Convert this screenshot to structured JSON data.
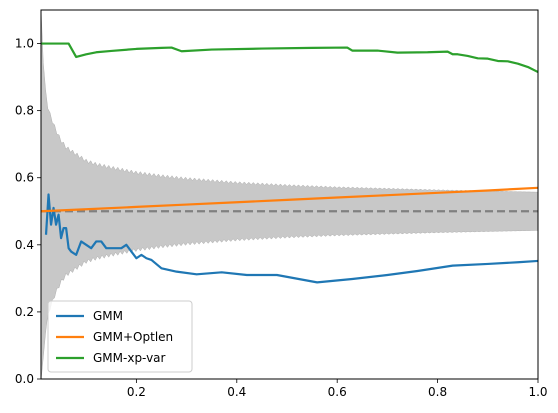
{
  "chart_data": {
    "type": "line",
    "xlim": [
      0.01,
      1.0
    ],
    "ylim": [
      0.0,
      1.1
    ],
    "x_ticks": [
      0.2,
      0.4,
      0.6,
      0.8,
      1.0
    ],
    "x_tick_labels": [
      "0.2",
      "0.4",
      "0.6",
      "0.8",
      "1.0"
    ],
    "y_ticks": [
      0.0,
      0.2,
      0.4,
      0.6,
      0.8,
      1.0
    ],
    "y_tick_labels": [
      "0.0",
      "0.2",
      "0.4",
      "0.6",
      "0.8",
      "1.0"
    ],
    "grid": false,
    "legend": {
      "placement": "lower-left",
      "entries": [
        "GMM",
        "GMM+Optlen",
        "GMM-xp-var"
      ]
    },
    "series": [
      {
        "name": "GMM",
        "color": "#1f77b4",
        "x": [
          0.02,
          0.025,
          0.03,
          0.035,
          0.04,
          0.045,
          0.05,
          0.055,
          0.06,
          0.065,
          0.07,
          0.08,
          0.09,
          0.1,
          0.11,
          0.12,
          0.13,
          0.14,
          0.15,
          0.16,
          0.17,
          0.18,
          0.19,
          0.2,
          0.21,
          0.22,
          0.23,
          0.25,
          0.28,
          0.32,
          0.37,
          0.42,
          0.48,
          0.56,
          0.63,
          0.7,
          0.76,
          0.83,
          0.9,
          0.96,
          1.0
        ],
        "values": [
          0.43,
          0.55,
          0.46,
          0.51,
          0.46,
          0.49,
          0.42,
          0.45,
          0.45,
          0.39,
          0.38,
          0.37,
          0.41,
          0.4,
          0.39,
          0.41,
          0.41,
          0.39,
          0.39,
          0.39,
          0.39,
          0.4,
          0.38,
          0.36,
          0.37,
          0.36,
          0.355,
          0.33,
          0.32,
          0.312,
          0.318,
          0.31,
          0.31,
          0.288,
          0.298,
          0.31,
          0.322,
          0.338,
          0.343,
          0.348,
          0.352
        ]
      },
      {
        "name": "GMM+Optlen",
        "color": "#ff7f0e",
        "x": [
          0.01,
          0.1,
          0.2,
          0.3,
          0.4,
          0.5,
          0.6,
          0.7,
          0.8,
          0.9,
          1.0
        ],
        "values": [
          0.5,
          0.506,
          0.513,
          0.52,
          0.527,
          0.534,
          0.541,
          0.548,
          0.555,
          0.562,
          0.57
        ]
      },
      {
        "name": "GMM-xp-var",
        "color": "#2ca02c",
        "x": [
          0.01,
          0.03,
          0.05,
          0.065,
          0.08,
          0.1,
          0.12,
          0.15,
          0.2,
          0.25,
          0.27,
          0.29,
          0.35,
          0.45,
          0.55,
          0.62,
          0.63,
          0.68,
          0.72,
          0.78,
          0.82,
          0.83,
          0.84,
          0.86,
          0.88,
          0.9,
          0.92,
          0.94,
          0.96,
          0.98,
          1.0
        ],
        "values": [
          1.0,
          1.0,
          1.0,
          1.0,
          0.96,
          0.968,
          0.974,
          0.978,
          0.984,
          0.987,
          0.988,
          0.977,
          0.982,
          0.985,
          0.987,
          0.988,
          0.979,
          0.979,
          0.973,
          0.974,
          0.976,
          0.968,
          0.968,
          0.963,
          0.956,
          0.955,
          0.948,
          0.947,
          0.94,
          0.93,
          0.915
        ]
      }
    ],
    "reference_line": {
      "y": 0.5,
      "style": "dashed",
      "color": "#808080"
    },
    "band": {
      "color": "#c8c8c8",
      "center": 0.5,
      "x": [
        0.01,
        0.012,
        0.015,
        0.02,
        0.025,
        0.03,
        0.04,
        0.05,
        0.06,
        0.07,
        0.08,
        0.1,
        0.12,
        0.15,
        0.2,
        0.25,
        0.3,
        0.4,
        0.5,
        0.6,
        0.7,
        0.8,
        0.9,
        1.0
      ],
      "upper": [
        1.1,
        1.05,
        0.93,
        0.84,
        0.8,
        0.78,
        0.74,
        0.71,
        0.69,
        0.68,
        0.67,
        0.65,
        0.64,
        0.63,
        0.615,
        0.605,
        0.597,
        0.585,
        0.577,
        0.571,
        0.567,
        0.563,
        0.56,
        0.557
      ],
      "lower": [
        0.0,
        0.0,
        0.07,
        0.16,
        0.2,
        0.22,
        0.26,
        0.29,
        0.31,
        0.32,
        0.33,
        0.35,
        0.36,
        0.37,
        0.385,
        0.395,
        0.403,
        0.415,
        0.423,
        0.429,
        0.433,
        0.437,
        0.44,
        0.443
      ]
    }
  }
}
